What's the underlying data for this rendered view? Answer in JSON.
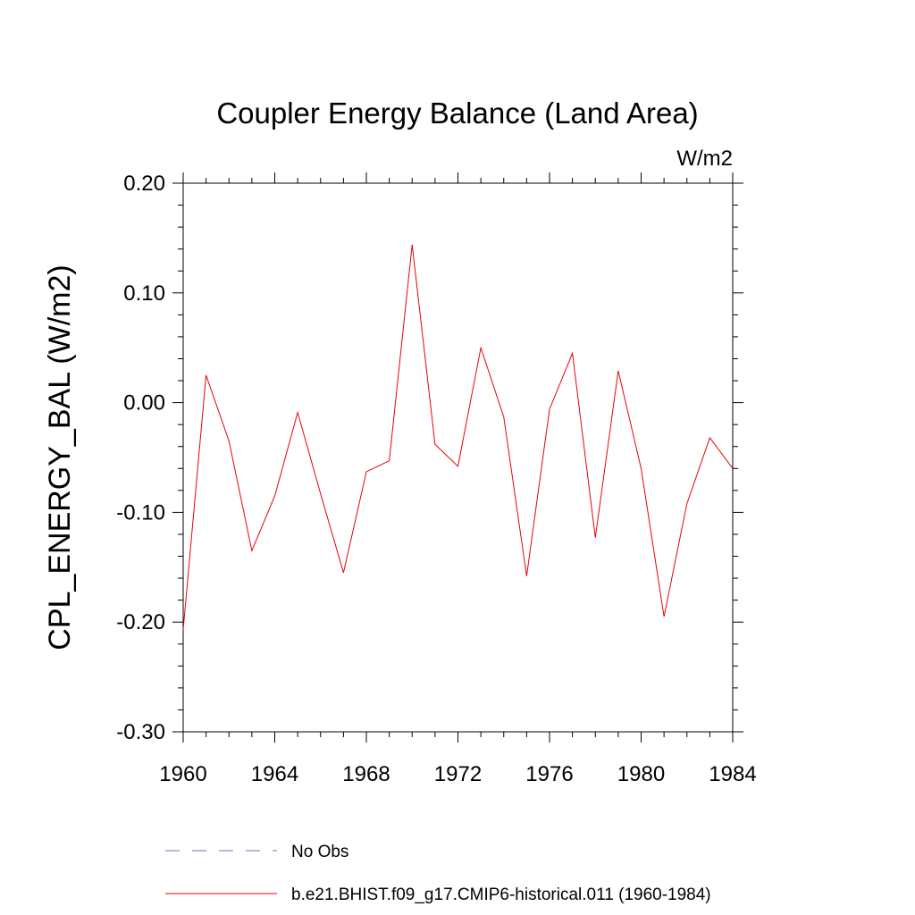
{
  "chart_data": {
    "type": "line",
    "title": "Coupler Energy Balance (Land Area)",
    "units_label": "W/m2",
    "xlabel": "",
    "ylabel": "CPL_ENERGY_BAL  (W/m2)",
    "xlim": [
      1960,
      1984
    ],
    "ylim": [
      -0.3,
      0.2
    ],
    "x_ticks": [
      "1960",
      "1964",
      "1968",
      "1972",
      "1976",
      "1980",
      "1984"
    ],
    "y_ticks": [
      "0.20",
      "0.10",
      "0.00",
      "-0.10",
      "-0.20",
      "-0.30"
    ],
    "grid": false,
    "series": [
      {
        "name": "No Obs",
        "color": "#7b68c8",
        "dashed": true,
        "x": [],
        "values": []
      },
      {
        "name": "b.e21.BHIST.f09_g17.CMIP6-historical.011 (1960-1984)",
        "color": "#e8000b",
        "dashed": false,
        "x": [
          1960,
          1961,
          1962,
          1963,
          1964,
          1965,
          1966,
          1967,
          1968,
          1969,
          1970,
          1971,
          1972,
          1973,
          1974,
          1975,
          1976,
          1977,
          1978,
          1979,
          1980,
          1981,
          1982,
          1983,
          1984
        ],
        "values": [
          -0.207,
          0.025,
          -0.035,
          -0.135,
          -0.085,
          -0.009,
          -0.083,
          -0.155,
          -0.063,
          -0.053,
          0.144,
          -0.038,
          -0.058,
          0.05,
          -0.013,
          -0.158,
          -0.006,
          0.045,
          -0.123,
          0.029,
          -0.06,
          -0.195,
          -0.092,
          -0.032,
          -0.06
        ]
      }
    ]
  }
}
